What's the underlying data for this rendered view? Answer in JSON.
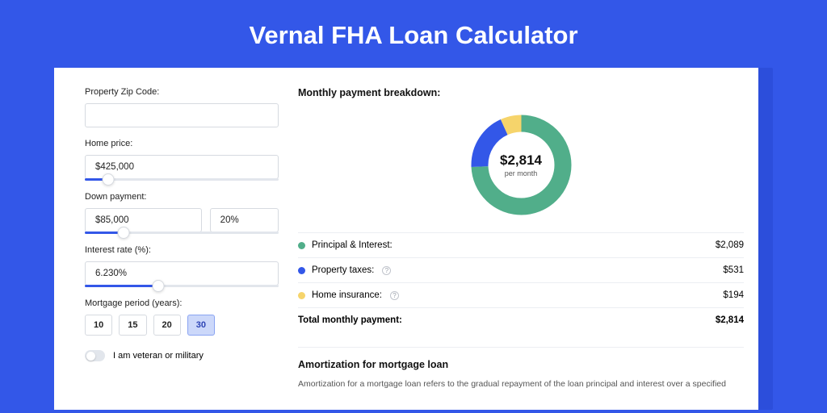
{
  "title": "Vernal FHA Loan Calculator",
  "colors": {
    "page_bg": "#3357e8",
    "card_shadow_bg": "#2c4edb",
    "input_border": "#d6dae0",
    "slider_track": "#e2e6ec",
    "slider_fill": "#3357e8",
    "period_active_bg": "#ccd8fa",
    "period_active_border": "#8aa4f2",
    "period_active_text": "#2d44b5",
    "principal": "#51ae8a",
    "taxes": "#3357e8",
    "insurance": "#f6d46b"
  },
  "form": {
    "zip_label": "Property Zip Code:",
    "zip_value": "",
    "home_price_label": "Home price:",
    "home_price_value": "$425,000",
    "home_price_slider_pct": 12,
    "down_payment_label": "Down payment:",
    "down_payment_value": "$85,000",
    "down_payment_pct_value": "20%",
    "down_payment_slider_pct": 20,
    "interest_label": "Interest rate (%):",
    "interest_value": "6.230%",
    "interest_slider_pct": 38,
    "period_label": "Mortgage period (years):",
    "periods": [
      "10",
      "15",
      "20",
      "30"
    ],
    "period_selected": "30",
    "veteran_label": "I am veteran or military",
    "veteran_on": false
  },
  "breakdown": {
    "title": "Monthly payment breakdown:",
    "donut": {
      "total_label": "$2,814",
      "per_month": "per month",
      "slices": [
        {
          "key": "principal",
          "value": 2089,
          "color": "#51ae8a"
        },
        {
          "key": "taxes",
          "value": 531,
          "color": "#3357e8"
        },
        {
          "key": "insurance",
          "value": 194,
          "color": "#f6d46b"
        }
      ],
      "total": 2814,
      "stroke_width": 21,
      "radius": 62,
      "inner_radius": 41
    },
    "rows": [
      {
        "label": "Principal & Interest:",
        "value": "$2,089",
        "color": "#51ae8a",
        "info": false
      },
      {
        "label": "Property taxes:",
        "value": "$531",
        "color": "#3357e8",
        "info": true
      },
      {
        "label": "Home insurance:",
        "value": "$194",
        "color": "#f6d46b",
        "info": true
      }
    ],
    "total_label": "Total monthly payment:",
    "total_value": "$2,814"
  },
  "amort": {
    "title": "Amortization for mortgage loan",
    "text": "Amortization for a mortgage loan refers to the gradual repayment of the loan principal and interest over a specified"
  }
}
